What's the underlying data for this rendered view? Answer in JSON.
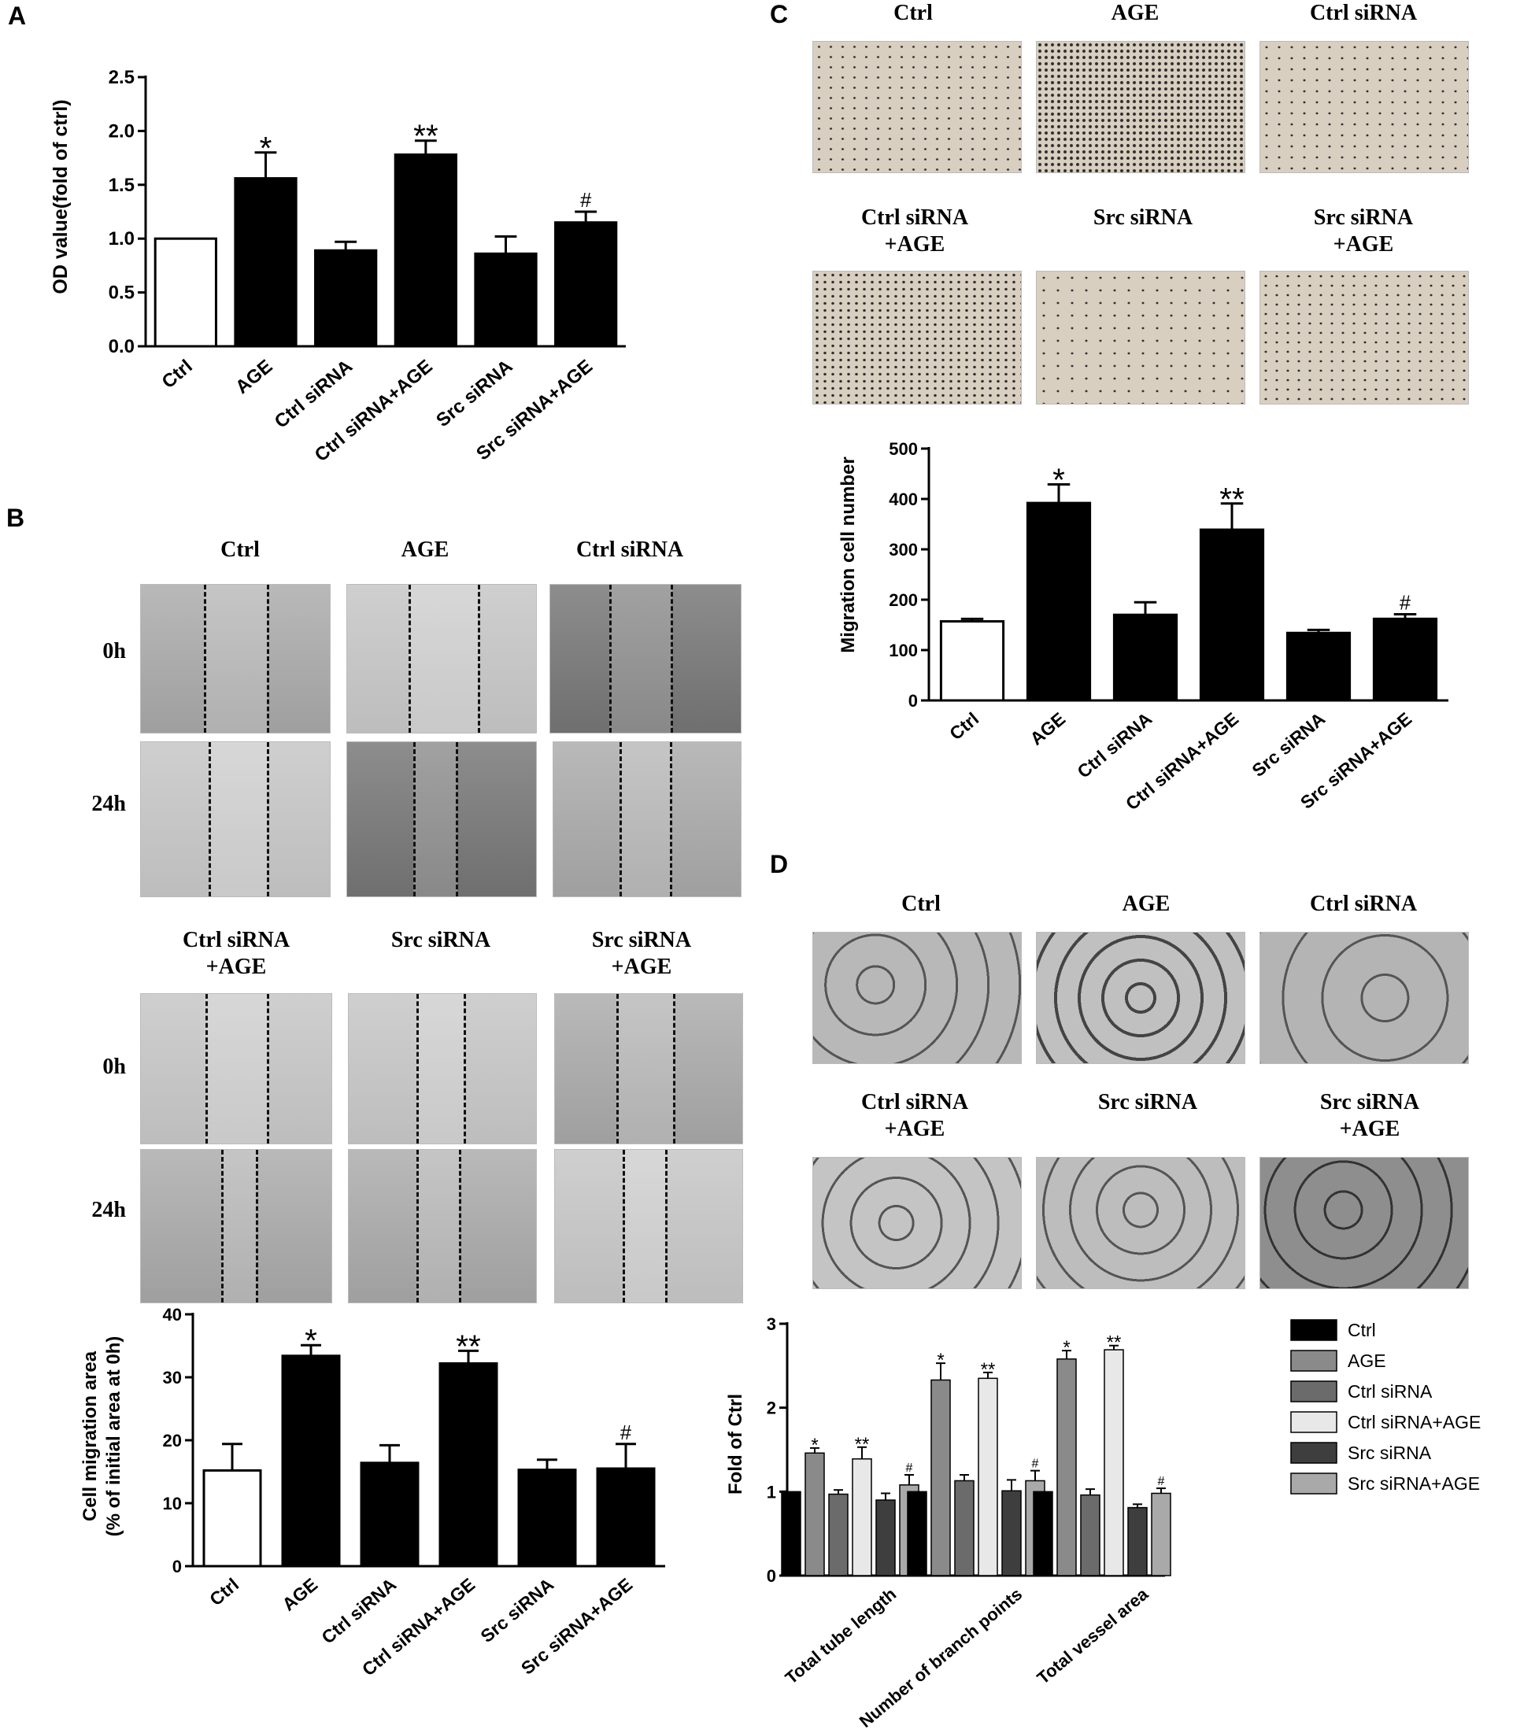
{
  "panels": {
    "a": "A",
    "b": "B",
    "c": "C",
    "d": "D"
  },
  "conditions": [
    "Ctrl",
    "AGE",
    "Ctrl siRNA",
    "Ctrl siRNA\n+AGE",
    "Src siRNA",
    "Src siRNA\n+AGE"
  ],
  "time_labels": [
    "0h",
    "24h"
  ],
  "colors": {
    "ctrl_bar": "#ffffff",
    "treated_bar": "#000000",
    "d_series": [
      "#000000",
      "#8a8a8a",
      "#6b6b6b",
      "#e8e8e8",
      "#3e3e3e",
      "#a9a9a9"
    ]
  },
  "chart_data": [
    {
      "id": "A",
      "type": "bar",
      "categories": [
        "Ctrl",
        "AGE",
        "Ctrl siRNA",
        "Ctrl siRNA+AGE",
        "Src siRNA",
        "Src siRNA+AGE"
      ],
      "values": [
        1.0,
        1.56,
        0.89,
        1.78,
        0.86,
        1.15
      ],
      "errors": [
        0.0,
        0.24,
        0.08,
        0.13,
        0.16,
        0.1
      ],
      "significance": [
        "",
        "*",
        "",
        "**",
        "",
        "#"
      ],
      "ylabel": "OD value(fold of ctrl)",
      "ylim": [
        0,
        2.5
      ],
      "yticks": [
        "0.0",
        "0.5",
        "1.0",
        "1.5",
        "2.0",
        "2.5"
      ]
    },
    {
      "id": "B",
      "type": "bar",
      "categories": [
        "Ctrl",
        "AGE",
        "Ctrl siRNA",
        "Ctrl siRNA+AGE",
        "Src siRNA",
        "Src siRNA+AGE"
      ],
      "values": [
        15.2,
        33.4,
        16.4,
        32.2,
        15.3,
        15.5
      ],
      "errors": [
        4.2,
        1.7,
        2.8,
        2.0,
        1.6,
        3.9
      ],
      "significance": [
        "",
        "*",
        "",
        "**",
        "",
        "#"
      ],
      "ylabel": "Cell migration area",
      "ylabel2": "(% of initial area at 0h)",
      "ylim": [
        0,
        40
      ],
      "yticks": [
        "0",
        "10",
        "20",
        "30",
        "40"
      ]
    },
    {
      "id": "C",
      "type": "bar",
      "categories": [
        "Ctrl",
        "AGE",
        "Ctrl siRNA",
        "Ctrl siRNA+AGE",
        "Src siRNA",
        "Src siRNA+AGE"
      ],
      "values": [
        157,
        392,
        170,
        339,
        134,
        162
      ],
      "errors": [
        5,
        37,
        25,
        52,
        6,
        9
      ],
      "significance": [
        "",
        "*",
        "",
        "**",
        "",
        "#"
      ],
      "ylabel": "Migration cell number",
      "ylim": [
        0,
        500
      ],
      "yticks": [
        "0",
        "100",
        "200",
        "300",
        "400",
        "500"
      ]
    },
    {
      "id": "D",
      "type": "bar",
      "categories": [
        "Total tube length",
        "Number of branch points",
        "Total vessel area"
      ],
      "series": [
        {
          "name": "Ctrl",
          "values": [
            1.0,
            1.0,
            1.0
          ],
          "errors": [
            0,
            0,
            0
          ],
          "significance": [
            "",
            "",
            ""
          ]
        },
        {
          "name": "AGE",
          "values": [
            1.46,
            2.33,
            2.58
          ],
          "errors": [
            0.06,
            0.2,
            0.1
          ],
          "significance": [
            "*",
            "*",
            "*"
          ]
        },
        {
          "name": "Ctrl siRNA",
          "values": [
            0.97,
            1.13,
            0.96
          ],
          "errors": [
            0.05,
            0.07,
            0.07
          ],
          "significance": [
            "",
            "",
            ""
          ]
        },
        {
          "name": "Ctrl siRNA+AGE",
          "values": [
            1.39,
            2.35,
            2.69
          ],
          "errors": [
            0.14,
            0.07,
            0.05
          ],
          "significance": [
            "**",
            "**",
            "**"
          ]
        },
        {
          "name": "Src siRNA",
          "values": [
            0.9,
            1.01,
            0.81
          ],
          "errors": [
            0.08,
            0.13,
            0.04
          ],
          "significance": [
            "",
            "",
            ""
          ]
        },
        {
          "name": "Src siRNA+AGE",
          "values": [
            1.08,
            1.13,
            0.98
          ],
          "errors": [
            0.12,
            0.12,
            0.06
          ],
          "significance": [
            "#",
            "#",
            "#"
          ]
        }
      ],
      "ylabel": "Fold of Ctrl",
      "ylim": [
        0,
        3
      ],
      "yticks": [
        "0",
        "1",
        "2",
        "3"
      ],
      "legend_position": "right"
    }
  ]
}
